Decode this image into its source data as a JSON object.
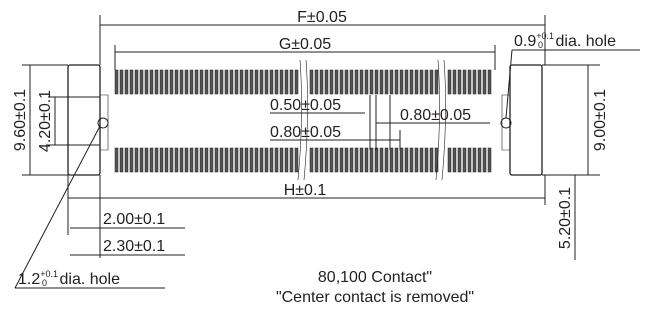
{
  "dimensions": {
    "f": "F±0.05",
    "g": "G±0.05",
    "h": "H±0.1",
    "d960": "9.60±0.1",
    "d420": "4.20±0.1",
    "d900": "9.00±0.1",
    "d050": "0.50±0.05",
    "d080_right": "0.80±0.05",
    "d080_left": "0.80±0.05",
    "d200": "2.00±0.1",
    "d230": "2.30±0.1",
    "d520": "5.20±0.1"
  },
  "holes": [
    {
      "base": "0.9",
      "upper": "+0.1",
      "lower": "0",
      "suffix": " dia. hole"
    },
    {
      "base": "1.2",
      "upper": "+0.1",
      "lower": "0",
      "suffix": " dia. hole"
    }
  ],
  "notes": [
    "80,100 Contact\"",
    "\"Center contact is removed\""
  ]
}
